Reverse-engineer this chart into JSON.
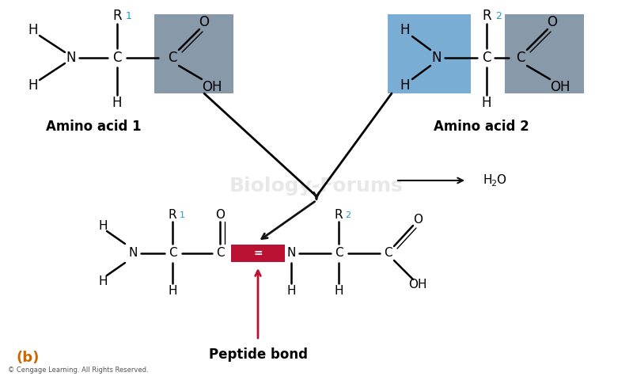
{
  "bg_color": "#ffffff",
  "gray_box_color": "#8899aa",
  "blue_box_color": "#7aadd4",
  "peptide_bond_color": "#bb1133",
  "black": "#111111",
  "cyan_1": "#2299cc",
  "orange_b": "#cc6600",
  "footer": "© Cengage Learning. All Rights Reserved.",
  "amino1_label": "Amino acid 1",
  "amino2_label": "Amino acid 2",
  "peptide_bond_label": "Peptide bond",
  "watermark": "Biology-Forums"
}
